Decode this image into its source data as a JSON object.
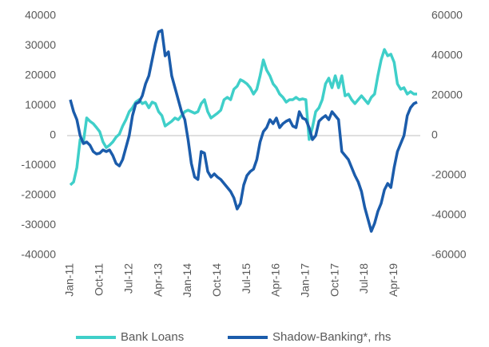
{
  "chart_data": {
    "type": "line",
    "categories": [
      "Jan-11",
      null,
      null,
      null,
      null,
      null,
      null,
      null,
      null,
      "Oct-11",
      null,
      null,
      null,
      null,
      null,
      null,
      null,
      null,
      "Jul-12",
      null,
      null,
      null,
      null,
      null,
      null,
      null,
      null,
      "Apr-13",
      null,
      null,
      null,
      null,
      null,
      null,
      null,
      null,
      "Jan-14",
      null,
      null,
      null,
      null,
      null,
      null,
      null,
      null,
      "Oct-14",
      null,
      null,
      null,
      null,
      null,
      null,
      null,
      null,
      "Jul-15",
      null,
      null,
      null,
      null,
      null,
      null,
      null,
      null,
      "Apr-16",
      null,
      null,
      null,
      null,
      null,
      null,
      null,
      null,
      "Jan-17",
      null,
      null,
      null,
      null,
      null,
      null,
      null,
      null,
      "Oct-17",
      null,
      null,
      null,
      null,
      null,
      null,
      null,
      null,
      "Jul-18",
      null,
      null,
      null,
      null,
      null,
      null,
      null,
      null,
      "Apr-19",
      null,
      null,
      null,
      null,
      null,
      null,
      null
    ],
    "series": [
      {
        "name": "Bank Loans",
        "color": "#3fcfc9",
        "values": [
          -16500,
          -15500,
          -10700,
          -1300,
          -2100,
          5900,
          4800,
          4000,
          2700,
          1300,
          -2100,
          -4000,
          -3200,
          -2100,
          -500,
          500,
          3200,
          5300,
          8000,
          9300,
          11200,
          12000,
          10700,
          11200,
          9300,
          11200,
          10700,
          8000,
          6700,
          3200,
          4000,
          4800,
          5900,
          5300,
          6700,
          8000,
          8500,
          8000,
          7500,
          8000,
          10700,
          12000,
          8000,
          5900,
          6700,
          7500,
          8500,
          12000,
          12800,
          12000,
          15500,
          16500,
          18700,
          18100,
          17300,
          16000,
          13900,
          15500,
          20000,
          25300,
          21900,
          20000,
          17300,
          16000,
          13900,
          12800,
          11200,
          12000,
          12000,
          12800,
          12000,
          12300,
          12000,
          -1300,
          2700,
          8000,
          9300,
          12000,
          17300,
          19200,
          16000,
          20000,
          16000,
          20000,
          13300,
          13900,
          12000,
          10700,
          12000,
          13300,
          12000,
          10700,
          12800,
          13900,
          20000,
          25300,
          28800,
          26700,
          27200,
          24500,
          17300,
          15500,
          16000,
          13900,
          14700,
          13900,
          13900
        ]
      },
      {
        "name": "Shadow-Banking*, rhs",
        "color": "#1b5cab",
        "axis": "y2",
        "values": [
          18000,
          12000,
          8000,
          0,
          -4000,
          -3200,
          -4800,
          -8000,
          -9200,
          -8800,
          -7200,
          -8000,
          -7200,
          -10000,
          -14000,
          -15200,
          -12000,
          -6000,
          0,
          10000,
          16000,
          16800,
          20000,
          26000,
          30000,
          38000,
          46000,
          52000,
          52800,
          40000,
          42000,
          30000,
          24000,
          18000,
          12000,
          8000,
          -2000,
          -14000,
          -20800,
          -22000,
          -8000,
          -8800,
          -18000,
          -20800,
          -19200,
          -20800,
          -22000,
          -24000,
          -26000,
          -28000,
          -31200,
          -36800,
          -34000,
          -24800,
          -20000,
          -18000,
          -16800,
          -12000,
          -3200,
          2000,
          4000,
          8000,
          6000,
          8800,
          4000,
          6000,
          7200,
          8000,
          4800,
          4000,
          12000,
          8800,
          8000,
          4000,
          -2000,
          0,
          7200,
          8800,
          10000,
          8000,
          12000,
          10000,
          8000,
          -8000,
          -10000,
          -12000,
          -16000,
          -20000,
          -23200,
          -28000,
          -36000,
          -42000,
          -48000,
          -44000,
          -38000,
          -34000,
          -27200,
          -24000,
          -26000,
          -16000,
          -8000,
          -4000,
          0,
          10000,
          14000,
          16000,
          16800
        ]
      }
    ],
    "ylim": [
      -40000,
      40000
    ],
    "yticks": [
      -40000,
      -30000,
      -20000,
      -10000,
      0,
      10000,
      20000,
      30000,
      40000
    ],
    "y2lim": [
      -60000,
      60000
    ],
    "y2ticks": [
      -60000,
      -40000,
      -20000,
      0,
      20000,
      40000,
      60000
    ],
    "grid": false,
    "legend": "bottom"
  }
}
